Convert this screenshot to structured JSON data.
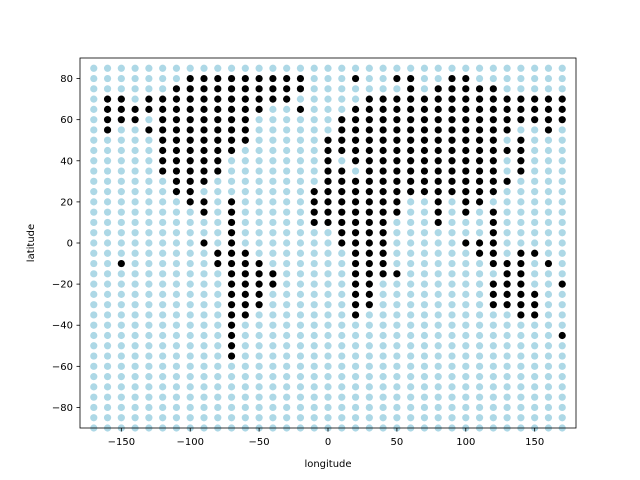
{
  "chart_data": {
    "type": "scatter",
    "title": "",
    "xlabel": "longitude",
    "ylabel": "latitude",
    "xlim": [
      -180,
      180
    ],
    "ylim": [
      -90,
      90
    ],
    "xticks": [
      -150,
      -100,
      -50,
      0,
      50,
      100,
      150
    ],
    "yticks": [
      -80,
      -60,
      -40,
      -20,
      0,
      20,
      40,
      60,
      80
    ],
    "xtick_labels": [
      "−150",
      "−100",
      "−50",
      "0",
      "50",
      "100",
      "150"
    ],
    "ytick_labels": [
      "−80",
      "−60",
      "−40",
      "−20",
      "0",
      "20",
      "40",
      "60",
      "80"
    ],
    "grid": false,
    "legend": "none",
    "colors": {
      "land": "#000000",
      "ocean": "#add8e6"
    },
    "grid_spacing": {
      "lon": 10,
      "lat": 5
    },
    "lon_range": [
      -170,
      170
    ],
    "lat_range": [
      -90,
      85
    ],
    "series": [
      {
        "color": "#000000",
        "points_by_lat": [
          {
            "lat": 80,
            "lon": [
              -100,
              -90,
              -80,
              -70,
              -60,
              -50,
              -40,
              -30,
              -20,
              20,
              50,
              60,
              90,
              100
            ]
          },
          {
            "lat": 75,
            "lon": [
              -110,
              -100,
              -90,
              -80,
              -70,
              -60,
              -50,
              -40,
              -30,
              -20,
              60,
              80,
              90,
              100,
              110,
              120
            ]
          },
          {
            "lat": 70,
            "lon": [
              -160,
              -150,
              -130,
              -120,
              -110,
              -100,
              -90,
              -80,
              -70,
              -60,
              -50,
              -40,
              -30,
              30,
              40,
              50,
              60,
              70,
              80,
              90,
              100,
              110,
              120,
              130,
              140,
              150,
              160,
              170
            ]
          },
          {
            "lat": 65,
            "lon": [
              -160,
              -150,
              -140,
              -130,
              -120,
              -110,
              -100,
              -90,
              -80,
              -70,
              -60,
              -50,
              -20,
              20,
              30,
              40,
              50,
              60,
              70,
              80,
              90,
              100,
              110,
              120,
              130,
              140,
              150,
              160,
              170
            ]
          },
          {
            "lat": 60,
            "lon": [
              -160,
              -150,
              -140,
              -120,
              -110,
              -100,
              -90,
              -80,
              -70,
              -60,
              10,
              20,
              30,
              40,
              50,
              60,
              70,
              80,
              90,
              100,
              110,
              120,
              130,
              140,
              150,
              160,
              170
            ]
          },
          {
            "lat": 55,
            "lon": [
              -160,
              -130,
              -120,
              -110,
              -100,
              -90,
              -80,
              -70,
              -60,
              10,
              20,
              30,
              40,
              50,
              60,
              70,
              80,
              90,
              100,
              110,
              120,
              130,
              160
            ]
          },
          {
            "lat": 50,
            "lon": [
              -120,
              -110,
              -100,
              -90,
              -80,
              -70,
              -60,
              0,
              10,
              20,
              30,
              40,
              50,
              60,
              70,
              80,
              90,
              100,
              110,
              120,
              140
            ]
          },
          {
            "lat": 45,
            "lon": [
              -120,
              -110,
              -100,
              -90,
              -80,
              -70,
              0,
              10,
              20,
              30,
              40,
              50,
              60,
              70,
              80,
              90,
              100,
              110,
              120,
              130,
              140
            ]
          },
          {
            "lat": 40,
            "lon": [
              -120,
              -110,
              -100,
              -90,
              -80,
              0,
              20,
              30,
              40,
              50,
              60,
              70,
              80,
              90,
              100,
              110,
              120,
              140
            ]
          },
          {
            "lat": 35,
            "lon": [
              -120,
              -110,
              -100,
              -90,
              -80,
              0,
              10,
              30,
              40,
              50,
              60,
              70,
              80,
              90,
              100,
              110,
              120,
              140
            ]
          },
          {
            "lat": 30,
            "lon": [
              -110,
              -100,
              -90,
              0,
              10,
              20,
              30,
              40,
              50,
              60,
              70,
              80,
              90,
              100,
              110,
              120,
              130
            ]
          },
          {
            "lat": 25,
            "lon": [
              -110,
              -100,
              -10,
              0,
              10,
              20,
              30,
              40,
              50,
              60,
              70,
              80,
              90,
              100,
              110,
              120
            ]
          },
          {
            "lat": 20,
            "lon": [
              -100,
              -90,
              -70,
              -10,
              0,
              10,
              20,
              30,
              40,
              50,
              80,
              100,
              110
            ]
          },
          {
            "lat": 15,
            "lon": [
              -90,
              -70,
              -10,
              0,
              10,
              20,
              30,
              40,
              50,
              80,
              100,
              120
            ]
          },
          {
            "lat": 10,
            "lon": [
              -70,
              -10,
              0,
              10,
              20,
              30,
              40,
              80,
              120
            ]
          },
          {
            "lat": 5,
            "lon": [
              -70,
              10,
              20,
              30,
              40,
              120
            ]
          },
          {
            "lat": 0,
            "lon": [
              -90,
              -70,
              10,
              20,
              30,
              40,
              100,
              110,
              120
            ]
          },
          {
            "lat": -5,
            "lon": [
              -80,
              -70,
              -60,
              20,
              30,
              40,
              110,
              120,
              140,
              150
            ]
          },
          {
            "lat": -10,
            "lon": [
              -150,
              -80,
              -70,
              -60,
              -50,
              20,
              30,
              40,
              120,
              130,
              140,
              160
            ]
          },
          {
            "lat": -15,
            "lon": [
              -70,
              -60,
              -50,
              -40,
              20,
              30,
              40,
              50,
              130,
              140
            ]
          },
          {
            "lat": -20,
            "lon": [
              -70,
              -60,
              -50,
              -40,
              20,
              30,
              120,
              130,
              140,
              170
            ]
          },
          {
            "lat": -25,
            "lon": [
              -70,
              -60,
              -50,
              20,
              30,
              120,
              130,
              140,
              150
            ]
          },
          {
            "lat": -30,
            "lon": [
              -70,
              -60,
              -50,
              20,
              30,
              120,
              130,
              140,
              150
            ]
          },
          {
            "lat": -35,
            "lon": [
              -70,
              -60,
              20,
              140,
              150
            ]
          },
          {
            "lat": -40,
            "lon": [
              -70
            ]
          },
          {
            "lat": -45,
            "lon": [
              -70,
              170
            ]
          },
          {
            "lat": -50,
            "lon": [
              -70
            ]
          },
          {
            "lat": -55,
            "lon": [
              -70
            ]
          }
        ]
      }
    ]
  }
}
